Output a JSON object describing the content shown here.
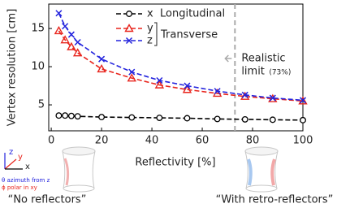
{
  "chart_data": {
    "type": "line",
    "xlabel": "Reflectivity [%]",
    "ylabel": "Vertex resolution [cm]",
    "x": [
      3,
      5.5,
      8,
      10.5,
      20,
      32,
      43,
      54,
      66,
      77,
      88,
      100
    ],
    "series": [
      {
        "name": "x",
        "color": "#000000",
        "marker": "circle",
        "values": [
          3.6,
          3.6,
          3.55,
          3.5,
          3.4,
          3.35,
          3.3,
          3.25,
          3.15,
          3.1,
          3.05,
          3.0
        ]
      },
      {
        "name": "y",
        "color": "#e8251d",
        "marker": "triangle",
        "values": [
          14.7,
          13.5,
          12.6,
          11.8,
          9.7,
          8.5,
          7.6,
          7.0,
          6.5,
          6.1,
          5.8,
          5.5
        ]
      },
      {
        "name": "z",
        "color": "#2323dd",
        "marker": "cross",
        "values": [
          17.0,
          15.3,
          14.2,
          13.2,
          11.0,
          9.3,
          8.2,
          7.5,
          6.8,
          6.3,
          5.9,
          5.6
        ]
      }
    ],
    "legend_groups": {
      "longitudinal": "Longitudinal",
      "transverse": "Transverse"
    },
    "xlim": [
      -1,
      100
    ],
    "ylim": [
      1.6,
      18.2
    ],
    "xticks": [
      0,
      20,
      40,
      60,
      80,
      100
    ],
    "yticks": [
      5,
      10,
      15
    ],
    "vline": {
      "x": 73,
      "label_lines": [
        "Realistic",
        "limit"
      ],
      "note": "(73%)",
      "color": "#aaaaaa"
    }
  },
  "figure": {
    "axes_icon": {
      "z": "z",
      "y": "y",
      "x": "x",
      "theta": "θ azimuth from z",
      "phi": "ϕ polar in xy"
    },
    "captions": [
      "“No reflectors”",
      "“With retro-reflectors”"
    ]
  }
}
